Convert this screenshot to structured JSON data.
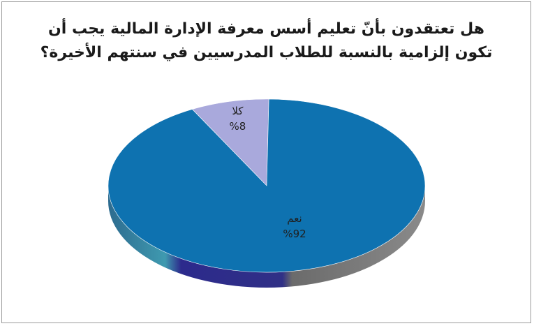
{
  "chart_data": {
    "type": "pie",
    "title_lines": [
      "هل تعتقدون بأنّ تعليم أسس معرفة الإدارة المالية يجب أن",
      "تكون إلزامية بالنسبة للطلاب المدرسيين في سنتهم الأخيرة؟"
    ],
    "slices": [
      {
        "label": "نعم",
        "value": 92,
        "value_label": "%92",
        "color": "#0e72b0"
      },
      {
        "label": "كلا",
        "value": 8,
        "value_label": "%8",
        "color": "#a9a9dc"
      }
    ],
    "legend": "none",
    "style": "3d"
  }
}
